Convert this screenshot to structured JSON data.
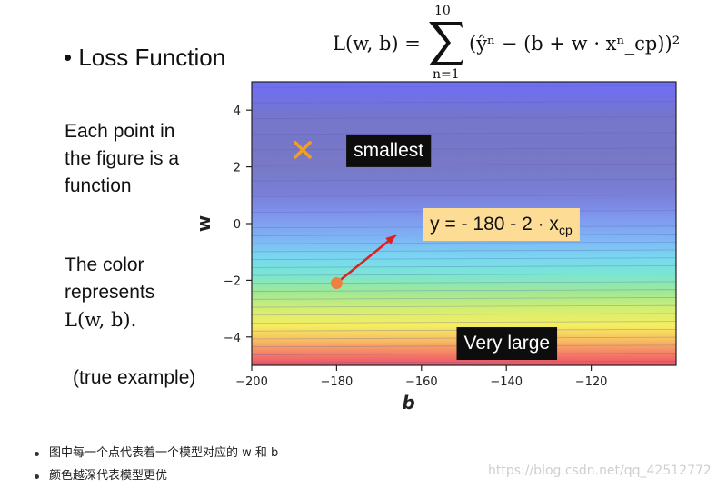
{
  "slide": {
    "heading": "• Loss Function",
    "formula": {
      "lhs": "L(w, b) =",
      "sum_upper": "10",
      "sum_lower": "n=1",
      "body": "(ŷⁿ − (b + w · xⁿ_cp))²"
    },
    "side_text_1": [
      "Each point in",
      "the figure is a",
      "function"
    ],
    "side_text_2": [
      "The color",
      "represents"
    ],
    "side_text_2_formula": "L(w, b).",
    "true_example": "(true example)"
  },
  "chart_data": {
    "type": "heatmap",
    "title": "",
    "xlabel": "b",
    "ylabel": "w",
    "xlim": [
      -200,
      -100
    ],
    "ylim": [
      -5,
      5
    ],
    "xticks": [
      -200,
      -180,
      -160,
      -140,
      -120
    ],
    "yticks": [
      -4,
      -2,
      0,
      2,
      4
    ],
    "colormap": "jet (dark red = very large loss, blue = small loss)",
    "color_bands": [
      {
        "w": 4.8,
        "color": "#6f6ff2"
      },
      {
        "w": 3.8,
        "color": "#7575cc"
      },
      {
        "w": 2.0,
        "color": "#7878c6"
      },
      {
        "w": 1.0,
        "color": "#7a80d8"
      },
      {
        "w": 0.3,
        "color": "#7f95ee"
      },
      {
        "w": -0.6,
        "color": "#7fb8f4"
      },
      {
        "w": -1.2,
        "color": "#78d8f0"
      },
      {
        "w": -1.8,
        "color": "#7ae6d2"
      },
      {
        "w": -2.4,
        "color": "#9ee896"
      },
      {
        "w": -3.0,
        "color": "#d2ee72"
      },
      {
        "w": -3.6,
        "color": "#f5ee60"
      },
      {
        "w": -4.1,
        "color": "#f8c060"
      },
      {
        "w": -4.5,
        "color": "#f58a66"
      },
      {
        "w": -4.9,
        "color": "#f05a66"
      }
    ],
    "markers": [
      {
        "name": "minimum",
        "b": -188,
        "w": 2.6,
        "symbol": "x",
        "color": "#f3a020"
      },
      {
        "name": "example-point",
        "b": -180,
        "w": -2.1,
        "symbol": "dot",
        "color": "#f08040"
      }
    ],
    "annotations": [
      {
        "text": "smallest",
        "b": -176,
        "w": 2.6,
        "style": "dark"
      },
      {
        "text": "y = - 180 - 2 · x",
        "subscript": "cp",
        "b": -158,
        "w": 0.0,
        "style": "light"
      },
      {
        "text": "Very large",
        "b": -150,
        "w": -4.2,
        "style": "dark"
      }
    ],
    "arrow": {
      "from_b": -180,
      "from_w": -2.1,
      "to_b": -166,
      "to_w": -0.4,
      "color": "#e02020"
    }
  },
  "notes": [
    "图中每一个点代表着一个模型对应的 w 和 b",
    "颜色越深代表模型更优"
  ],
  "watermark": "https://blog.csdn.net/qq_42512772"
}
